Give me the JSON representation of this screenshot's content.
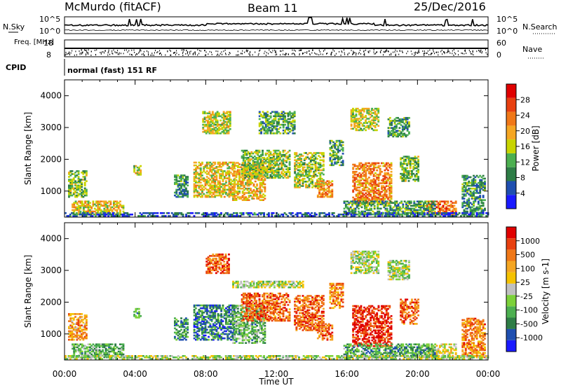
{
  "header": {
    "station": "McMurdo (fitACF)",
    "beam": "Beam 11",
    "date": "25/Dec/2016"
  },
  "chart_data": [
    {
      "type": "line",
      "panel": "noise",
      "left_label": "N.Sky",
      "right_label": "N.Search",
      "left_ticks": [
        "10^5",
        "10^0"
      ],
      "right_ticks": [
        "10^5",
        "10^0"
      ]
    },
    {
      "type": "scatter",
      "panel": "frequency-nave",
      "left_label": "Freq. [MHz]",
      "right_label": "Nave",
      "left_ticks": [
        "18",
        "8"
      ],
      "right_ticks": [
        "60",
        "0"
      ]
    },
    {
      "type": "table",
      "panel": "cpid",
      "label": "CPID",
      "text": "normal (fast) 151 RF"
    },
    {
      "type": "heatmap",
      "panel": "power",
      "ylabel": "Slant Range [km]",
      "ylim": [
        180,
        4500
      ],
      "yticks": [
        1000,
        2000,
        3000,
        4000
      ],
      "xlim_hours": [
        0,
        24
      ],
      "colorbar": {
        "label": "Power [dB]",
        "ticks": [
          "4",
          "8",
          "12",
          "16",
          "20",
          "24",
          "28"
        ],
        "colors": [
          "#1a1aff",
          "#1f4fb0",
          "#2e7d46",
          "#4caf50",
          "#c8d400",
          "#f5a623",
          "#f07818",
          "#e84010",
          "#e00000"
        ]
      },
      "regions": [
        {
          "t": [
            0.4,
            3.3
          ],
          "r": [
            250,
            700
          ],
          "lvl": 0.55
        },
        {
          "t": [
            0.2,
            1.2
          ],
          "r": [
            800,
            1650
          ],
          "lvl": 0.4
        },
        {
          "t": [
            3.9,
            4.3
          ],
          "r": [
            1500,
            1800
          ],
          "lvl": 0.5
        },
        {
          "t": [
            6.2,
            7.0
          ],
          "r": [
            800,
            1500
          ],
          "lvl": 0.3
        },
        {
          "t": [
            7.3,
            9.6
          ],
          "r": [
            800,
            1900
          ],
          "lvl": 0.55
        },
        {
          "t": [
            7.8,
            9.4
          ],
          "r": [
            2800,
            3500
          ],
          "lvl": 0.5
        },
        {
          "t": [
            9.5,
            11.3
          ],
          "r": [
            700,
            1900
          ],
          "lvl": 0.6
        },
        {
          "t": [
            10.0,
            12.7
          ],
          "r": [
            1400,
            2300
          ],
          "lvl": 0.45
        },
        {
          "t": [
            11.0,
            13.0
          ],
          "r": [
            2800,
            3500
          ],
          "lvl": 0.35
        },
        {
          "t": [
            13.0,
            14.7
          ],
          "r": [
            1100,
            2200
          ],
          "lvl": 0.45
        },
        {
          "t": [
            14.3,
            15.2
          ],
          "r": [
            800,
            1300
          ],
          "lvl": 0.7
        },
        {
          "t": [
            15.0,
            15.8
          ],
          "r": [
            1800,
            2600
          ],
          "lvl": 0.35
        },
        {
          "t": [
            16.2,
            17.8
          ],
          "r": [
            2900,
            3600
          ],
          "lvl": 0.5
        },
        {
          "t": [
            16.3,
            18.5
          ],
          "r": [
            600,
            1900
          ],
          "lvl": 0.7
        },
        {
          "t": [
            18.3,
            19.5
          ],
          "r": [
            2700,
            3300
          ],
          "lvl": 0.35
        },
        {
          "t": [
            19.0,
            20.0
          ],
          "r": [
            1300,
            2100
          ],
          "lvl": 0.4
        },
        {
          "t": [
            20.5,
            22.2
          ],
          "r": [
            250,
            700
          ],
          "lvl": 0.75
        },
        {
          "t": [
            15.8,
            21.0
          ],
          "r": [
            250,
            700
          ],
          "lvl": 0.35
        },
        {
          "t": [
            22.5,
            23.8
          ],
          "r": [
            250,
            1500
          ],
          "lvl": 0.3
        },
        {
          "t": [
            0,
            24
          ],
          "r": [
            200,
            320
          ],
          "lvl": 0.2
        }
      ]
    },
    {
      "type": "heatmap",
      "panel": "velocity",
      "ylabel": "Slant Range [km]",
      "ylim": [
        180,
        4500
      ],
      "yticks": [
        1000,
        2000,
        3000,
        4000
      ],
      "xlabel": "Time UT",
      "xticks": [
        "00:00",
        "04:00",
        "08:00",
        "12:00",
        "16:00",
        "20:00",
        "00:00"
      ],
      "xlim_hours": [
        0,
        24
      ],
      "colorbar": {
        "label": "Velocity [m s-1]",
        "ticks": [
          "1000",
          "500",
          "100",
          "25",
          "-25",
          "-100",
          "-500",
          "-1000"
        ],
        "colors": [
          "#1a1aff",
          "#1f4fb0",
          "#2e7d46",
          "#4caf50",
          "#7cd13a",
          "#c0c0c0",
          "#f5c200",
          "#f5a623",
          "#f07818",
          "#e84010",
          "#e00000"
        ]
      },
      "regions": [
        {
          "t": [
            0.4,
            3.3
          ],
          "r": [
            250,
            700
          ],
          "lvl": 0.35
        },
        {
          "t": [
            0.2,
            1.2
          ],
          "r": [
            800,
            1650
          ],
          "lvl": 0.7
        },
        {
          "t": [
            3.9,
            4.3
          ],
          "r": [
            1500,
            1800
          ],
          "lvl": 0.3
        },
        {
          "t": [
            6.2,
            7.0
          ],
          "r": [
            800,
            1500
          ],
          "lvl": 0.25
        },
        {
          "t": [
            7.3,
            9.6
          ],
          "r": [
            800,
            1900
          ],
          "lvl": 0.22
        },
        {
          "t": [
            8.0,
            9.3
          ],
          "r": [
            2900,
            3500
          ],
          "lvl": 0.8
        },
        {
          "t": [
            9.5,
            11.3
          ],
          "r": [
            700,
            1900
          ],
          "lvl": 0.35
        },
        {
          "t": [
            9.5,
            13.5
          ],
          "r": [
            2450,
            2650
          ],
          "lvl": 0.45
        },
        {
          "t": [
            10.0,
            12.7
          ],
          "r": [
            1400,
            2300
          ],
          "lvl": 0.8
        },
        {
          "t": [
            13.0,
            14.7
          ],
          "r": [
            1100,
            2200
          ],
          "lvl": 0.8
        },
        {
          "t": [
            14.3,
            15.2
          ],
          "r": [
            800,
            1300
          ],
          "lvl": 0.8
        },
        {
          "t": [
            15.0,
            15.8
          ],
          "r": [
            1800,
            2600
          ],
          "lvl": 0.75
        },
        {
          "t": [
            16.2,
            17.8
          ],
          "r": [
            2900,
            3600
          ],
          "lvl": 0.45
        },
        {
          "t": [
            16.3,
            18.5
          ],
          "r": [
            600,
            1900
          ],
          "lvl": 0.9
        },
        {
          "t": [
            18.3,
            19.5
          ],
          "r": [
            2700,
            3300
          ],
          "lvl": 0.45
        },
        {
          "t": [
            19.0,
            20.0
          ],
          "r": [
            1300,
            2100
          ],
          "lvl": 0.8
        },
        {
          "t": [
            20.5,
            22.2
          ],
          "r": [
            250,
            700
          ],
          "lvl": 0.55
        },
        {
          "t": [
            15.8,
            21.0
          ],
          "r": [
            250,
            700
          ],
          "lvl": 0.3
        },
        {
          "t": [
            22.5,
            23.8
          ],
          "r": [
            250,
            1500
          ],
          "lvl": 0.75
        },
        {
          "t": [
            0,
            24
          ],
          "r": [
            200,
            320
          ],
          "lvl": 0.45
        }
      ]
    }
  ]
}
